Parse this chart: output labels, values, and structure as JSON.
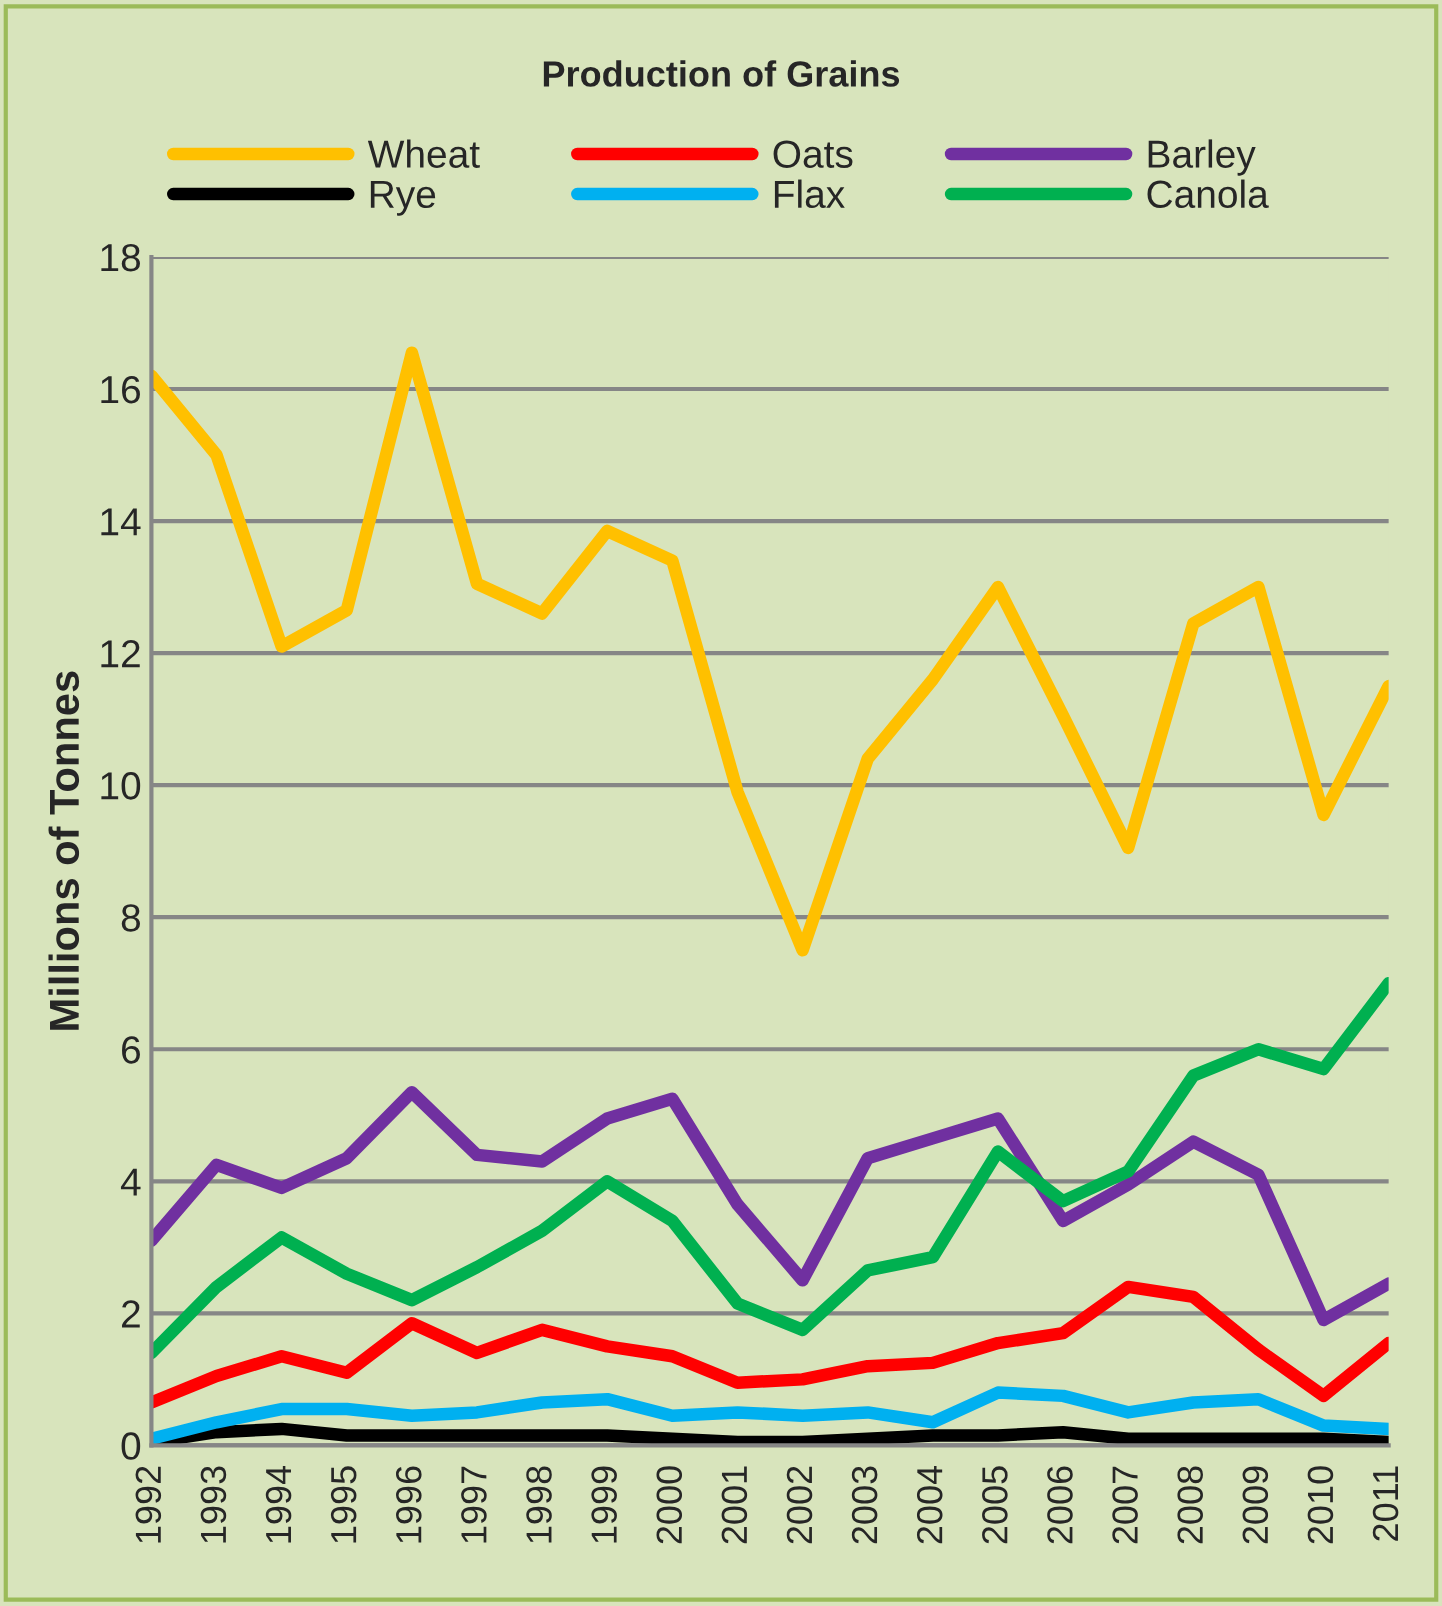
{
  "chart_data": {
    "type": "line",
    "title": "Production of Grains",
    "ylabel": "Millions of Tonnes",
    "categories": [
      "1992",
      "1993",
      "1994",
      "1995",
      "1996",
      "1997",
      "1998",
      "1999",
      "2000",
      "2001",
      "2002",
      "2003",
      "2004",
      "2005",
      "2006",
      "2007",
      "2008",
      "2009",
      "2010",
      "2011"
    ],
    "series": [
      {
        "name": "Wheat",
        "color": "#ffc000",
        "values": [
          16.2,
          15.0,
          12.1,
          12.65,
          16.55,
          13.05,
          12.6,
          13.85,
          13.4,
          9.9,
          7.5,
          10.4,
          11.6,
          13.0,
          11.05,
          9.05,
          12.45,
          13.0,
          9.55,
          11.5
        ]
      },
      {
        "name": "Oats",
        "color": "#ff0000",
        "values": [
          0.65,
          1.05,
          1.35,
          1.1,
          1.85,
          1.4,
          1.75,
          1.5,
          1.35,
          0.95,
          1.0,
          1.2,
          1.25,
          1.55,
          1.7,
          2.4,
          2.25,
          1.45,
          0.75,
          1.55
        ]
      },
      {
        "name": "Barley",
        "color": "#7030a0",
        "values": [
          3.1,
          4.25,
          3.9,
          4.35,
          5.35,
          4.4,
          4.3,
          4.95,
          5.25,
          3.65,
          2.5,
          4.35,
          4.65,
          4.95,
          3.4,
          3.95,
          4.6,
          4.1,
          1.9,
          2.45
        ]
      },
      {
        "name": "Rye",
        "color": "#000000",
        "values": [
          0.05,
          0.2,
          0.25,
          0.15,
          0.15,
          0.15,
          0.15,
          0.15,
          0.1,
          0.05,
          0.05,
          0.1,
          0.15,
          0.15,
          0.2,
          0.1,
          0.1,
          0.1,
          0.1,
          0.05
        ]
      },
      {
        "name": "Flax",
        "color": "#00b0f0",
        "values": [
          0.1,
          0.35,
          0.55,
          0.55,
          0.45,
          0.5,
          0.65,
          0.7,
          0.45,
          0.5,
          0.45,
          0.5,
          0.35,
          0.8,
          0.75,
          0.5,
          0.65,
          0.7,
          0.3,
          0.25
        ]
      },
      {
        "name": "Canola",
        "color": "#00b050",
        "values": [
          1.4,
          2.4,
          3.15,
          2.6,
          2.2,
          2.7,
          3.25,
          4.0,
          3.4,
          2.15,
          1.75,
          2.65,
          2.85,
          4.45,
          3.7,
          4.15,
          5.6,
          6.0,
          5.7,
          7.0
        ]
      }
    ],
    "ylim": [
      0,
      18
    ],
    "yticks": [
      0,
      2,
      4,
      6,
      8,
      10,
      12,
      14,
      16,
      18
    ],
    "grid": "y",
    "legend": "top",
    "marker": "none",
    "line_style": "solid"
  }
}
